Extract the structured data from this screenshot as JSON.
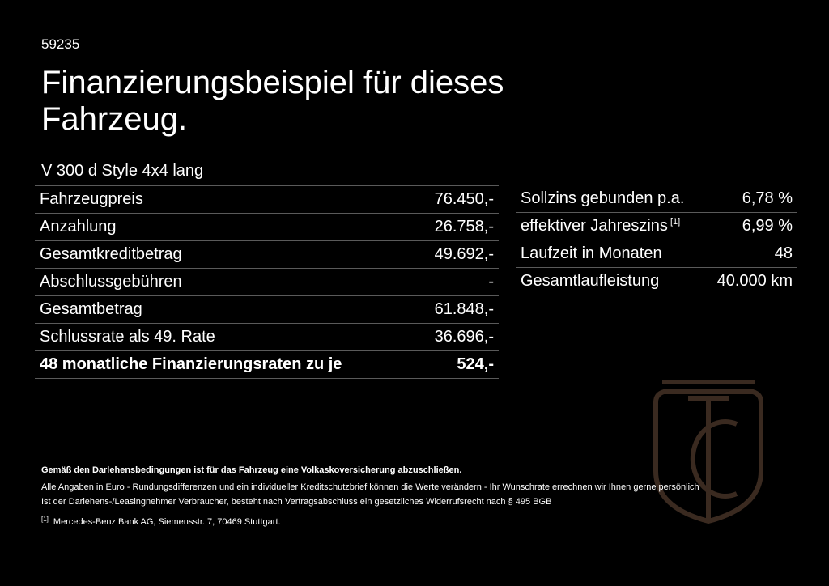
{
  "doc_id": "59235",
  "title": "Finanzierungsbeispiel für dieses Fahrzeug.",
  "vehicle": "V 300 d Style 4x4 lang",
  "left_rows": [
    {
      "label": "Fahrzeugpreis",
      "value": "76.450,-"
    },
    {
      "label": "Anzahlung",
      "value": "26.758,-"
    },
    {
      "label": "Gesamtkreditbetrag",
      "value": "49.692,-"
    },
    {
      "label": "Abschlussgebühren",
      "value": "-"
    },
    {
      "label": "Gesamtbetrag",
      "value": "61.848,-"
    },
    {
      "label": "Schlussrate als 49. Rate",
      "value": "36.696,-"
    },
    {
      "label": "48 monatliche Finanzierungsraten zu je",
      "value": "524,-"
    }
  ],
  "right_rows": [
    {
      "label": "Sollzins gebunden p.a.",
      "value": "6,78 %"
    },
    {
      "label": "effektiver Jahreszins",
      "sup": "[1]",
      "value": "6,99 %"
    },
    {
      "label": "Laufzeit in Monaten",
      "value": "48"
    },
    {
      "label": "Gesamtlaufleistung",
      "value": "40.000 km"
    }
  ],
  "notes": {
    "bold": "Gemäß den Darlehensbedingungen ist für das Fahrzeug eine Volkaskoversicherung abzuschließen.",
    "line1": "Alle Angaben in Euro - Rundungsdifferenzen und ein individueller Kreditschutzbrief können die Werte verändern - Ihr Wunschrate errechnen wir Ihnen gerne persönlich",
    "line2": "Ist der Darlehens-/Leasingnehmer Verbraucher, besteht nach Vertragsabschluss ein gesetzliches Widerrufsrecht nach § 495 BGB",
    "footnote_mark": "[1]",
    "footnote": "Mercedes-Benz Bank AG, Siemensstr. 7, 70469 Stuttgart."
  },
  "colors": {
    "background": "#000000",
    "text": "#ffffff",
    "rule": "#5a5a5a",
    "logo": "#3a2a20"
  },
  "logo_icon": "tc-crest-logo"
}
